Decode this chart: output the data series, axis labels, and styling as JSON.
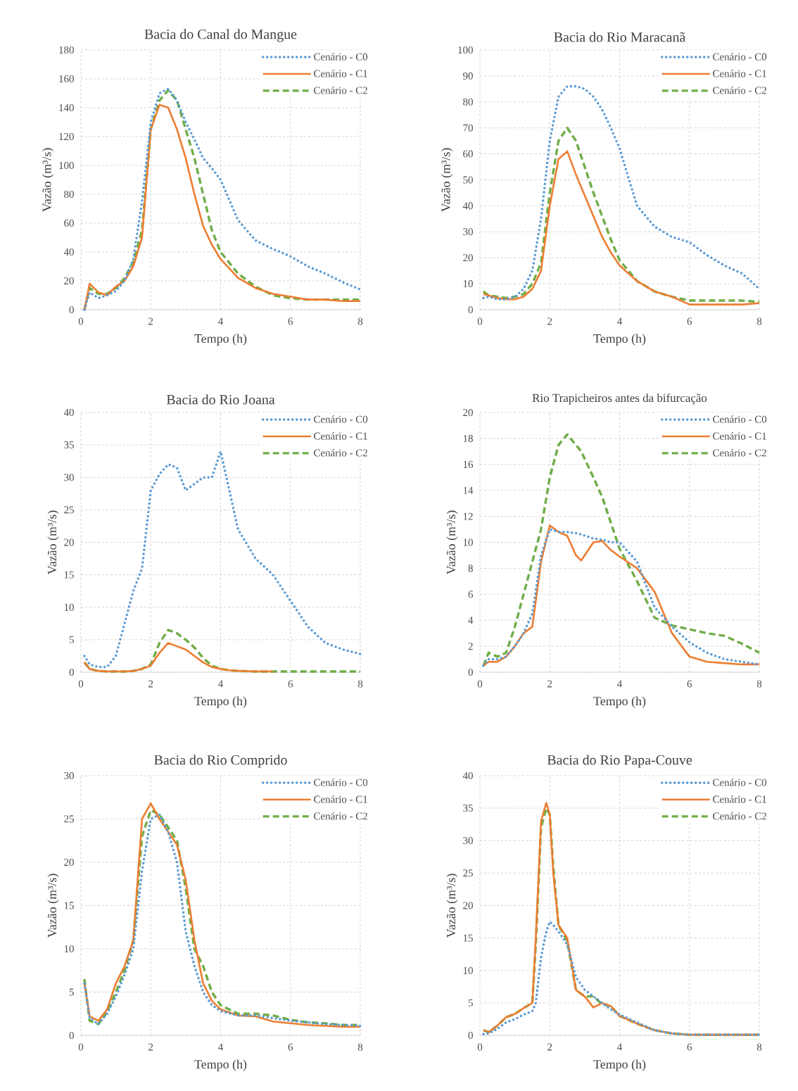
{
  "chart_data": [
    {
      "type": "line",
      "title": "Bacia do Canal do Mangue",
      "xlabel": "Tempo (h)",
      "ylabel": "Vazão (m³/s)",
      "xlim": [
        0,
        8
      ],
      "ylim": [
        0,
        180
      ],
      "xticks": [
        0,
        2,
        4,
        6,
        8
      ],
      "yticks": [
        0,
        20,
        40,
        60,
        80,
        100,
        120,
        140,
        160,
        180
      ],
      "grid": true,
      "legend": "top right",
      "x": [
        0.1,
        0.25,
        0.5,
        0.75,
        1,
        1.25,
        1.5,
        1.75,
        2,
        2.25,
        2.5,
        2.75,
        3,
        3.25,
        3.5,
        3.75,
        4,
        4.5,
        5,
        5.5,
        6,
        6.5,
        7,
        7.5,
        8
      ],
      "series": [
        {
          "name": "Cenário - C0",
          "color": "#5b9bd5",
          "line_style": "dotted",
          "values": [
            0,
            12,
            8,
            10,
            13,
            20,
            35,
            75,
            130,
            150,
            153,
            145,
            130,
            118,
            105,
            98,
            90,
            62,
            48,
            42,
            37,
            30,
            25,
            19,
            14
          ]
        },
        {
          "name": "Cenário - C1",
          "color": "#ed7d31",
          "line_style": "solid",
          "values": [
            0,
            18,
            12,
            10,
            16,
            20,
            30,
            50,
            125,
            142,
            140,
            125,
            105,
            80,
            58,
            45,
            35,
            22,
            15,
            11,
            9,
            7,
            7,
            6,
            6
          ]
        },
        {
          "name": "Cenário - C2",
          "color": "#70ad47",
          "line_style": "dashed",
          "values": [
            0,
            15,
            11,
            11,
            15,
            22,
            33,
            55,
            125,
            145,
            152,
            145,
            125,
            105,
            80,
            55,
            40,
            25,
            16,
            10,
            8,
            7,
            7,
            7,
            7
          ]
        }
      ]
    },
    {
      "type": "line",
      "title": "Bacia do Rio Maracanã",
      "xlabel": "Tempo (h)",
      "ylabel": "Vazão (m³/s)",
      "xlim": [
        0,
        8
      ],
      "ylim": [
        0,
        100
      ],
      "xticks": [
        0,
        2,
        4,
        6,
        8
      ],
      "yticks": [
        0,
        10,
        20,
        30,
        40,
        50,
        60,
        70,
        80,
        90,
        100
      ],
      "grid": true,
      "legend": "top right",
      "x": [
        0.1,
        0.25,
        0.5,
        0.75,
        1,
        1.25,
        1.5,
        1.75,
        2,
        2.25,
        2.5,
        2.75,
        3,
        3.25,
        3.5,
        3.75,
        4,
        4.5,
        5,
        5.5,
        6,
        6.5,
        7,
        7.5,
        8
      ],
      "series": [
        {
          "name": "Cenário - C0",
          "color": "#5b9bd5",
          "line_style": "dotted",
          "values": [
            4.5,
            5,
            4,
            4,
            5,
            8,
            15,
            35,
            65,
            82,
            86,
            86,
            85,
            82,
            77,
            70,
            62,
            40,
            32,
            28,
            26,
            21,
            17,
            14,
            8
          ]
        },
        {
          "name": "Cenário - C1",
          "color": "#ed7d31",
          "line_style": "solid",
          "values": [
            6,
            5.5,
            4.5,
            4,
            4,
            5,
            8,
            15,
            40,
            58,
            61,
            52,
            44,
            36,
            28,
            22,
            17,
            11,
            7,
            5,
            2,
            2,
            2,
            2,
            2.5
          ]
        },
        {
          "name": "Cenário - C2",
          "color": "#70ad47",
          "line_style": "dashed",
          "values": [
            7,
            5.5,
            5,
            4.5,
            5,
            6,
            10,
            18,
            45,
            65,
            70,
            65,
            55,
            45,
            36,
            27,
            19,
            11,
            7,
            5,
            3.5,
            3.5,
            3.5,
            3.5,
            3
          ]
        }
      ]
    },
    {
      "type": "line",
      "title": "Bacia do Rio Joana",
      "xlabel": "Tempo (h)",
      "ylabel": "Vazão (m³/s)",
      "xlim": [
        0,
        8
      ],
      "ylim": [
        0,
        40
      ],
      "xticks": [
        0,
        2,
        4,
        6,
        8
      ],
      "yticks": [
        0,
        5,
        10,
        15,
        20,
        25,
        30,
        35,
        40
      ],
      "grid": true,
      "legend": "top right",
      "x": [
        0.1,
        0.25,
        0.5,
        0.75,
        1,
        1.25,
        1.5,
        1.75,
        2,
        2.25,
        2.5,
        2.75,
        3,
        3.25,
        3.5,
        3.75,
        4,
        4.25,
        4.5,
        5,
        5.5,
        6,
        6.5,
        7,
        7.5,
        8
      ],
      "series": [
        {
          "name": "Cenário - C0",
          "color": "#5b9bd5",
          "line_style": "dotted",
          "values": [
            2.5,
            1.2,
            0.8,
            0.8,
            2.5,
            7.5,
            12.5,
            16,
            28,
            30.5,
            32,
            31.5,
            28,
            29,
            30,
            30,
            34,
            28,
            22,
            17.5,
            15,
            11,
            7,
            4.5,
            3.5,
            2.8
          ]
        },
        {
          "name": "Cenário - C1",
          "color": "#ed7d31",
          "line_style": "solid",
          "values": [
            1.5,
            0.5,
            0.2,
            0.1,
            0.1,
            0.1,
            0.2,
            0.5,
            1,
            3,
            4.5,
            4,
            3.5,
            2.5,
            1.5,
            0.8,
            0.5,
            0.3,
            0.2,
            0.1,
            0.1,
            null,
            null,
            null,
            null,
            null
          ]
        },
        {
          "name": "Cenário - C2",
          "color": "#70ad47",
          "line_style": "dashed",
          "values": [
            1.5,
            0.5,
            0.2,
            0.1,
            0.1,
            0.1,
            0.2,
            0.5,
            1.2,
            4.5,
            6.5,
            6,
            5,
            3.8,
            2.2,
            1,
            0.5,
            0.3,
            0.2,
            0.1,
            0.1,
            0.1,
            0.1,
            0.1,
            0.1,
            0.1
          ]
        }
      ]
    },
    {
      "type": "line",
      "title": "Rio Trapicheiros antes da bifurcação",
      "xlabel": "Tempo (h)",
      "ylabel": "Vazão (m³/s)",
      "xlim": [
        0,
        8
      ],
      "ylim": [
        0,
        20
      ],
      "xticks": [
        0,
        2,
        4,
        6,
        8
      ],
      "yticks": [
        0,
        2,
        4,
        6,
        8,
        10,
        12,
        14,
        16,
        18,
        20
      ],
      "grid": true,
      "legend": "top right",
      "x": [
        0.1,
        0.25,
        0.5,
        0.75,
        1,
        1.25,
        1.5,
        1.75,
        2,
        2.25,
        2.5,
        2.75,
        2.9,
        3.25,
        3.5,
        3.75,
        4,
        4.5,
        5,
        5.5,
        6,
        6.5,
        7,
        7.5,
        8
      ],
      "series": [
        {
          "name": "Cenário - C0",
          "color": "#5b9bd5",
          "line_style": "dotted",
          "values": [
            0.5,
            1,
            1,
            1.2,
            2,
            3,
            4.5,
            9,
            11,
            10.8,
            10.8,
            10.7,
            10.6,
            10.3,
            10.2,
            10,
            10,
            8.5,
            5,
            3.5,
            2.3,
            1.5,
            1,
            0.8,
            0.6
          ]
        },
        {
          "name": "Cenário - C1",
          "color": "#ed7d31",
          "line_style": "solid",
          "values": [
            0.5,
            0.8,
            0.8,
            1.2,
            2,
            3,
            3.5,
            8.5,
            11.3,
            10.8,
            10.5,
            9,
            8.6,
            10,
            10.1,
            9.4,
            8.9,
            8,
            6.2,
            3,
            1.2,
            0.8,
            0.7,
            0.6,
            0.6
          ]
        },
        {
          "name": "Cenário - C2",
          "color": "#70ad47",
          "line_style": "dashed",
          "values": [
            0.5,
            1.5,
            1.2,
            1.5,
            3.5,
            6,
            8.5,
            11,
            15,
            17.5,
            18.3,
            17.5,
            17,
            15,
            13.5,
            11.5,
            9.5,
            7,
            4.2,
            3.6,
            3.3,
            3,
            2.8,
            2.2,
            1.5
          ]
        }
      ]
    },
    {
      "type": "line",
      "title": "Bacia do Rio Comprido",
      "xlabel": "Tempo (h)",
      "ylabel": "Vazão (m³/s)",
      "xlim": [
        0,
        8
      ],
      "ylim": [
        0,
        30
      ],
      "xticks": [
        0,
        2,
        4,
        6,
        8
      ],
      "yticks": [
        0,
        5,
        10,
        15,
        20,
        25,
        30
      ],
      "grid": true,
      "legend": "top right",
      "x": [
        0.1,
        0.25,
        0.5,
        0.75,
        1,
        1.25,
        1.5,
        1.75,
        2,
        2.25,
        2.5,
        2.75,
        3,
        3.25,
        3.5,
        3.75,
        4,
        4.5,
        5,
        5.5,
        6,
        6.5,
        7,
        7.5,
        8
      ],
      "series": [
        {
          "name": "Cenário - C0",
          "color": "#5b9bd5",
          "line_style": "dotted",
          "values": [
            6,
            2,
            1.3,
            2.5,
            4.5,
            7,
            10,
            19,
            25,
            25.5,
            23.5,
            20,
            12,
            8,
            5,
            3.5,
            2.8,
            2.3,
            2.3,
            2,
            1.7,
            1.5,
            1.3,
            1.2,
            1.1
          ]
        },
        {
          "name": "Cenário - C1",
          "color": "#ed7d31",
          "line_style": "solid",
          "values": [
            6,
            2.2,
            1.7,
            3,
            6,
            8,
            11,
            25,
            26.8,
            25,
            23.5,
            22,
            18,
            11,
            6,
            4,
            3,
            2.3,
            2.2,
            1.6,
            1.4,
            1.2,
            1.1,
            1,
            1
          ]
        },
        {
          "name": "Cenário - C2",
          "color": "#70ad47",
          "line_style": "dashed",
          "values": [
            6.5,
            1.7,
            1.3,
            2.7,
            5,
            7.5,
            11,
            23,
            26,
            25.5,
            24,
            22.5,
            17,
            10,
            8,
            5,
            3.5,
            2.5,
            2.5,
            2.3,
            1.8,
            1.5,
            1.4,
            1.2,
            1.2
          ]
        }
      ]
    },
    {
      "type": "line",
      "title": "Bacia do Rio Papa-Couve",
      "xlabel": "Tempo (h)",
      "ylabel": "Vazão (m³/s)",
      "xlim": [
        0,
        8
      ],
      "ylim": [
        0,
        40
      ],
      "xticks": [
        0,
        2,
        4,
        6,
        8
      ],
      "yticks": [
        0,
        5,
        10,
        15,
        20,
        25,
        30,
        35,
        40
      ],
      "grid": true,
      "legend": "top right",
      "x": [
        0.1,
        0.25,
        0.5,
        0.75,
        1,
        1.25,
        1.5,
        1.6,
        1.75,
        1.9,
        2,
        2.1,
        2.25,
        2.5,
        2.75,
        3,
        3.25,
        3.5,
        3.75,
        4,
        4.5,
        5,
        5.5,
        6,
        6.5,
        7,
        7.5,
        8
      ],
      "series": [
        {
          "name": "Cenário - C0",
          "color": "#5b9bd5",
          "line_style": "dotted",
          "values": [
            0.2,
            0.3,
            1,
            2,
            2.5,
            3.2,
            3.7,
            5,
            12,
            16,
            17.5,
            17,
            16,
            14,
            9,
            7,
            6,
            5,
            4,
            3.2,
            2,
            0.8,
            0.3,
            0.1,
            0.1,
            0.1,
            0.1,
            0.1
          ]
        },
        {
          "name": "Cenário - C1",
          "color": "#ed7d31",
          "line_style": "solid",
          "values": [
            0.8,
            0.5,
            1.5,
            2.8,
            3.3,
            4.2,
            5,
            15,
            33,
            35.8,
            34,
            25,
            17,
            15,
            7,
            6,
            4.3,
            5,
            4.5,
            3,
            1.8,
            0.8,
            0.3,
            0.1,
            0.1,
            0.1,
            0.1,
            0.1
          ]
        },
        {
          "name": "Cenário - C2",
          "color": "#70ad47",
          "line_style": "dashed",
          "values": [
            0.8,
            0.5,
            1.5,
            2.8,
            3.3,
            4.2,
            5,
            14,
            32,
            35,
            34,
            26,
            17,
            14.5,
            7,
            6,
            6,
            4.8,
            4.5,
            3,
            1.8,
            0.8,
            0.3,
            0.1,
            0.1,
            0.1,
            0.1,
            0.1
          ]
        }
      ]
    }
  ]
}
